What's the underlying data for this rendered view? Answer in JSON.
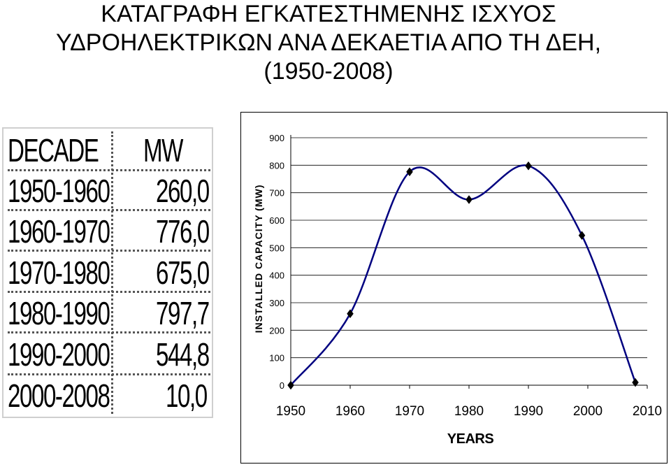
{
  "title": {
    "line1": "ΚΑΤΑΓΡΑΦΗ ΕΓΚΑΤΕΣΤΗΜΕΝΗΣ ΙΣΧΥΟΣ",
    "line2": "ΥΔΡΟΗΛΕΚΤΡΙΚΩΝ ΑΝΑ ΔΕΚΑΕΤΙΑ ΑΠΟ ΤΗ ΔΕΗ,",
    "line3": "(1950-2008)"
  },
  "table": {
    "headers": [
      "DECADE",
      "MW"
    ],
    "rows": [
      {
        "decade": "1950-1960",
        "mw": "260,0"
      },
      {
        "decade": "1960-1970",
        "mw": "776,0"
      },
      {
        "decade": "1970-1980",
        "mw": "675,0"
      },
      {
        "decade": "1980-1990",
        "mw": "797,7"
      },
      {
        "decade": "1990-2000",
        "mw": "544,8"
      },
      {
        "decade": "2000-2008",
        "mw": "10,0"
      }
    ]
  },
  "chart_data": {
    "type": "line",
    "title": "",
    "xlabel": "YEARS",
    "ylabel": "INSTALLED CAPACITY (MW)",
    "xlim": [
      1950,
      2010
    ],
    "ylim": [
      0,
      900
    ],
    "xticks": [
      "1950",
      "1960",
      "1970",
      "1980",
      "1990",
      "2000",
      "2010"
    ],
    "yticks": [
      "0",
      "100",
      "200",
      "300",
      "400",
      "500",
      "600",
      "700",
      "800",
      "900"
    ],
    "grid": true,
    "smooth": true,
    "series": [
      {
        "name": "MW",
        "color": "#000080",
        "marker": "diamond",
        "x": [
          1950,
          1960,
          1970,
          1980,
          1990,
          1999,
          2008
        ],
        "y": [
          0,
          260,
          776,
          675,
          797.7,
          544.8,
          10
        ]
      }
    ]
  }
}
